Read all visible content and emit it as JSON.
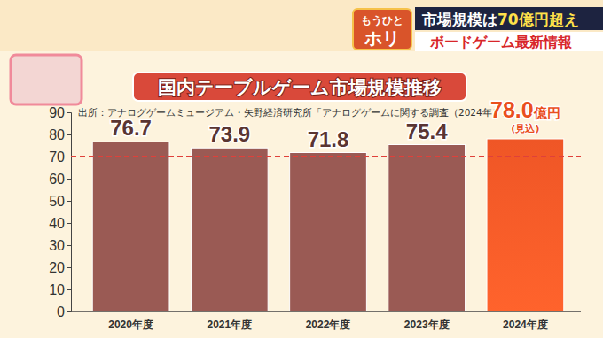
{
  "header": {
    "logo_top": "もうひと",
    "logo_bottom": "ホリ",
    "headline_parts": [
      "市場規模は",
      "70億円超え"
    ],
    "subhead": "ボードゲーム最新情報"
  },
  "chart_data": {
    "type": "bar",
    "title": "国内テーブルゲーム市場規模推移",
    "subtitle": "出所：アナログゲームミュージアム・矢野経済研究所「アナログゲームに関する調査（2024年）」",
    "categories": [
      "2020年度",
      "2021年度",
      "2022年度",
      "2023年度",
      "2024年度"
    ],
    "values": [
      76.7,
      73.9,
      71.8,
      75.4,
      78.0
    ],
    "value_labels": [
      "76.7",
      "73.9",
      "71.8",
      "75.4",
      "78.0億円"
    ],
    "annotations": [
      "(見込)"
    ],
    "colors": [
      "#9a5a54",
      "#9a5a54",
      "#9a5a54",
      "#9a5a54",
      "#ef5626"
    ],
    "reference_line": 70,
    "ylim": [
      0,
      90
    ],
    "yticks": [
      0,
      10,
      20,
      30,
      40,
      50,
      60,
      70,
      80,
      90
    ],
    "grid": false,
    "data_labels": true
  }
}
